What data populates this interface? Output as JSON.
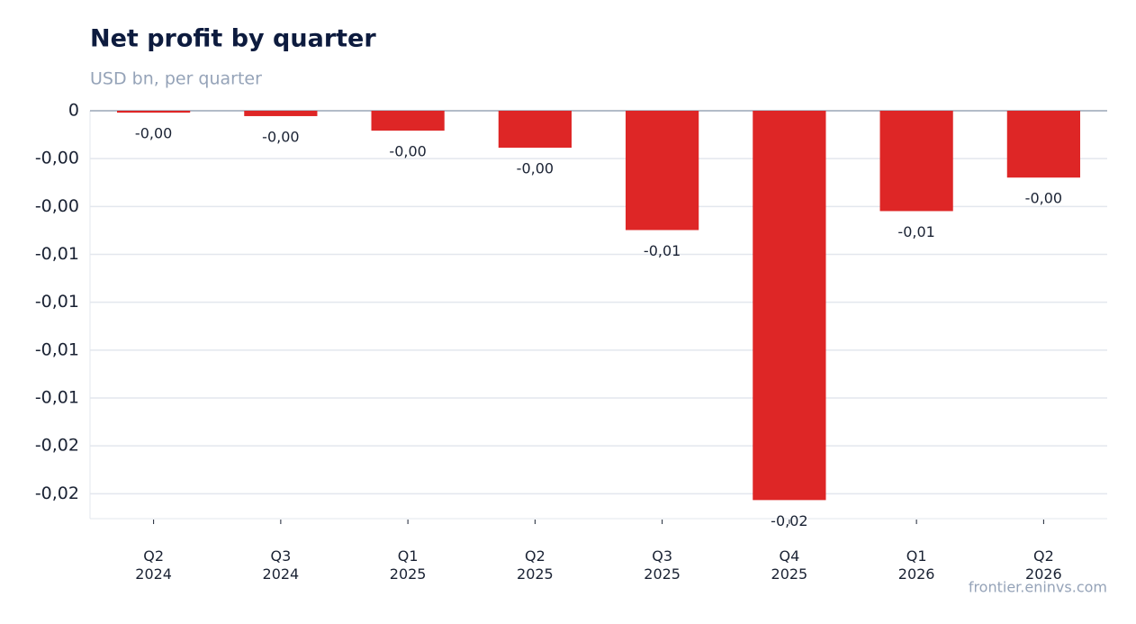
{
  "chart_data": {
    "type": "bar",
    "title": "Net profit by quarter",
    "subtitle": "USD bn, per quarter",
    "source": "frontier.eninvs.com",
    "categories": [
      "Q2\n2024",
      "Q3\n2024",
      "Q1\n2025",
      "Q2\n2025",
      "Q3\n2025",
      "Q4\n2025",
      "Q1\n2026",
      "Q2\n2026"
    ],
    "values": [
      -0.0001,
      -0.00028,
      -0.00104,
      -0.00193,
      -0.00623,
      -0.02033,
      -0.00524,
      -0.00349
    ],
    "value_labels": [
      "-0,00",
      "-0,00",
      "-0,00",
      "-0,00",
      "-0,01",
      "-0,02",
      "-0,01",
      "-0,00"
    ],
    "color": "#de2626",
    "ylim": [
      -0.0213,
      0
    ],
    "yticks": [
      0,
      {
        "value": -0.0025,
        "label": "-0,00"
      },
      {
        "value": -0.005,
        "label": "-0,00"
      },
      {
        "value": -0.0075,
        "label": "-0,01"
      },
      {
        "value": -0.01,
        "label": "-0,01"
      },
      {
        "value": -0.0125,
        "label": "-0,01"
      },
      {
        "value": -0.015,
        "label": "-0,01"
      },
      {
        "value": -0.0175,
        "label": "-0,02"
      },
      {
        "value": -0.02,
        "label": "-0,02"
      }
    ],
    "grid": true
  }
}
